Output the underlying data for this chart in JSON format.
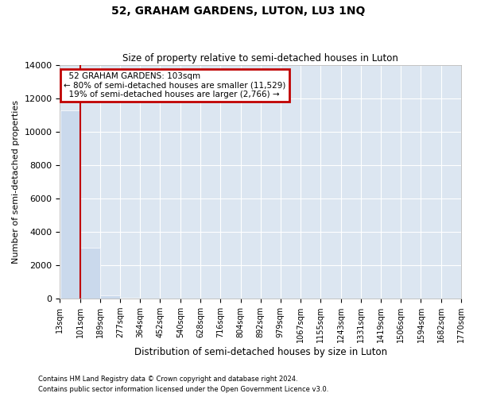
{
  "title": "52, GRAHAM GARDENS, LUTON, LU3 1NQ",
  "subtitle": "Size of property relative to semi-detached houses in Luton",
  "xlabel": "Distribution of semi-detached houses by size in Luton",
  "ylabel": "Number of semi-detached properties",
  "property_address": "52 GRAHAM GARDENS: 103sqm",
  "pct_smaller": 80,
  "n_smaller": 11529,
  "pct_larger": 19,
  "n_larger": 2766,
  "property_size_sqm": 103,
  "bar_edges": [
    13,
    101,
    189,
    277,
    364,
    452,
    540,
    628,
    716,
    804,
    892,
    979,
    1067,
    1155,
    1243,
    1331,
    1419,
    1506,
    1594,
    1682,
    1770
  ],
  "bar_heights": [
    11300,
    3050,
    200,
    40,
    10,
    5,
    3,
    2,
    1,
    1,
    1,
    0,
    0,
    0,
    0,
    0,
    0,
    0,
    0,
    0
  ],
  "bar_color": "#cad9ec",
  "property_line_color": "#c00000",
  "annotation_box_color": "#c00000",
  "background_color": "#dce6f1",
  "grid_color": "#ffffff",
  "ylim": [
    0,
    14000
  ],
  "yticks": [
    0,
    2000,
    4000,
    6000,
    8000,
    10000,
    12000,
    14000
  ],
  "tick_labels": [
    "13sqm",
    "101sqm",
    "189sqm",
    "277sqm",
    "364sqm",
    "452sqm",
    "540sqm",
    "628sqm",
    "716sqm",
    "804sqm",
    "892sqm",
    "979sqm",
    "1067sqm",
    "1155sqm",
    "1243sqm",
    "1331sqm",
    "1419sqm",
    "1506sqm",
    "1594sqm",
    "1682sqm",
    "1770sqm"
  ],
  "footer_line1": "Contains HM Land Registry data © Crown copyright and database right 2024.",
  "footer_line2": "Contains public sector information licensed under the Open Government Licence v3.0."
}
